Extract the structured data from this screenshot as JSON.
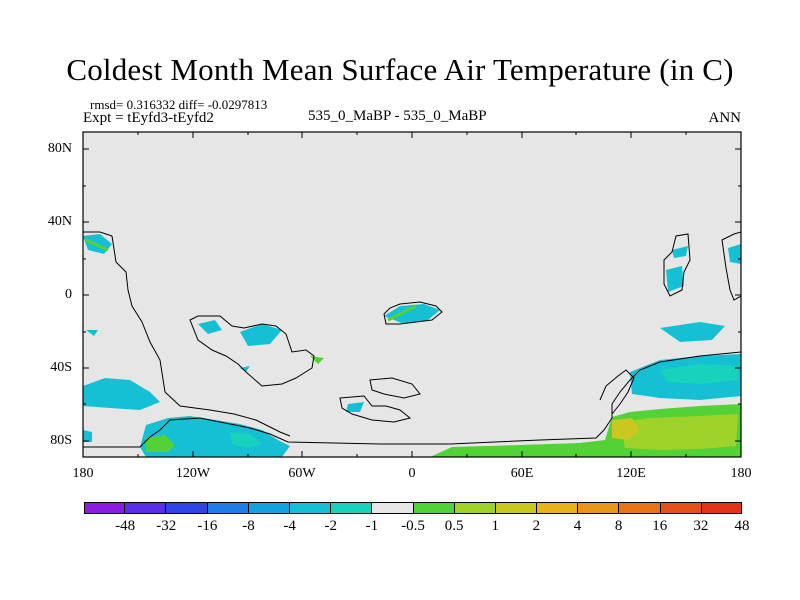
{
  "title": "Coldest Month Mean Surface Air Temperature (in C)",
  "stats": "rmsd= 0.316332 diff= -0.0297813",
  "expt": "Expt = tEyfd3-tEyfd2",
  "center_label": "535_0_MaBP - 535_0_MaBP",
  "season": "ANN",
  "x_ticks": [
    "180",
    "120W",
    "60W",
    "0",
    "60E",
    "120E",
    "180"
  ],
  "y_ticks": [
    "80N",
    "40N",
    "0",
    "40S",
    "80S"
  ],
  "colorbar": {
    "colors": [
      "#8a1ee0",
      "#5a2ee6",
      "#2f46e6",
      "#1c7ee6",
      "#14a2dc",
      "#16c0d4",
      "#18d2bc",
      "#e6e6e6",
      "#52d236",
      "#9ed22a",
      "#c8c81e",
      "#e6b41a",
      "#e6961a",
      "#e6741a",
      "#e6501a",
      "#e23218"
    ],
    "labels": [
      "-48",
      "-32",
      "-16",
      "-8",
      "-4",
      "-2",
      "-1",
      "-0.5",
      "0.5",
      "1",
      "2",
      "4",
      "8",
      "16",
      "32",
      "48"
    ]
  },
  "colors": {
    "background": "#e6e6e6",
    "cyan": "#16c0d4",
    "teal": "#18d2bc",
    "green": "#52d236",
    "lime": "#9ed22a",
    "yellow": "#c8c81e"
  }
}
